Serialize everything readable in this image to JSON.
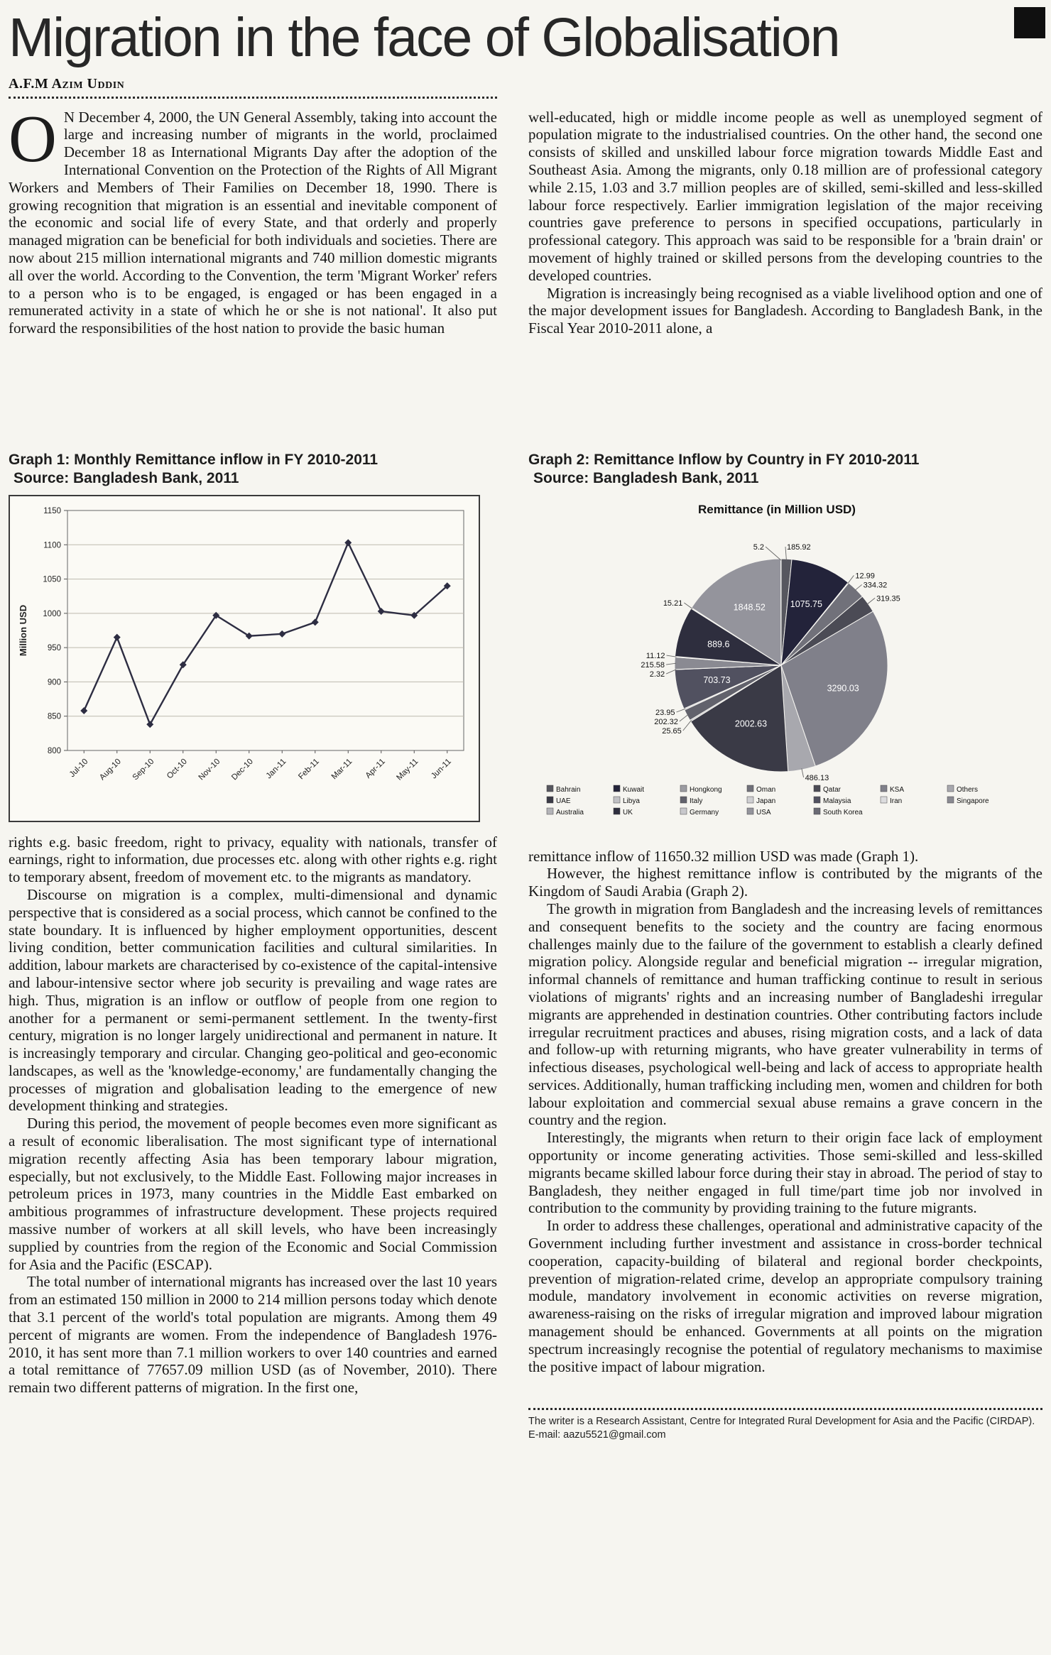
{
  "page": {
    "title": "Migration in the face of Globalisation",
    "byline": "A.F.M Azim Uddin"
  },
  "article": {
    "p1_dropcap": "O",
    "p1_rest": "N December 4, 2000, the UN General Assembly, taking into account the large and increasing number of migrants in the world, proclaimed December 18 as International Migrants Day after the adoption of the International Convention on the Protection of the Rights of All Migrant Workers and Members of Their Families on December 18, 1990. There is growing recognition that migration is an essential and inevitable component of the economic and social life of every State, and that orderly and properly managed migration can be beneficial for both individuals and societies. There are now about 215 million international migrants and 740 million domestic migrants all over the world. According to the Convention, the term 'Migrant Worker' refers to a person who is to be engaged, is engaged or has been engaged in a remunerated activity in a state of which he or she is not national'. It also put forward the responsibilities of the host nation to provide the basic human",
    "left_paras": [
      "rights e.g. basic freedom, right to privacy, equality with nationals, transfer of earnings, right to information, due processes etc. along with other rights e.g. right to temporary absent, freedom of movement etc. to the migrants as mandatory.",
      "Discourse on migration is a complex, multi-dimensional and dynamic perspective that is considered as a social process, which cannot be confined to the state boundary. It is influenced by higher employment opportunities, descent living condition, better communication facilities and cultural similarities. In addition, labour markets are characterised by co-existence of the capital-intensive and labour-intensive sector where job security is prevailing and wage rates are high. Thus, migration is an inflow or outflow of people from one region to another for a permanent or semi-permanent settlement. In the twenty-first century, migration is no longer largely unidirectional and permanent in nature. It is increasingly temporary and circular. Changing geo-political and geo-economic landscapes, as well as the 'knowledge-economy,' are fundamentally changing the processes of migration and globalisation leading to the emergence of new development thinking and strategies.",
      "During this period, the movement of people becomes even more significant as a result of economic liberalisation. The most significant type of international migration recently affecting Asia has been temporary labour migration, especially, but not exclusively, to the Middle East. Following major increases in petroleum prices in 1973, many countries in the Middle East embarked on ambitious programmes of infrastructure development. These projects required massive number of workers at all skill levels, who have been increasingly supplied by countries from the region of the Economic and Social Commission for Asia and the Pacific (ESCAP).",
      "The total number of international migrants has increased over the last 10 years from an estimated 150 million in 2000 to 214 million persons today which denote that 3.1 percent of the world's total population are migrants. Among them 49 percent of migrants are women. From the independence of Bangladesh 1976-2010, it has sent more than 7.1 million workers to over 140 countries and earned a total remittance of 77657.09 million USD (as of November, 2010). There remain two different patterns of migration. In the first one,"
    ],
    "right_top_paras": [
      "well-educated, high or middle income people as well as unemployed segment of population migrate to the industrialised countries. On the other hand, the second one consists of skilled and unskilled labour force migration towards Middle East and Southeast Asia. Among the migrants, only 0.18 million are of professional category while 2.15, 1.03 and 3.7 million peoples are of skilled, semi-skilled and less-skilled labour force respectively. Earlier immigration legislation of the major receiving countries gave preference to persons in specified occupations, particularly in professional category. This approach was said to be responsible for a 'brain drain' or movement of highly trained or skilled persons from the developing countries to the developed countries.",
      "Migration is increasingly being recognised as a viable livelihood option and one of the major development issues for Bangladesh. According to Bangladesh Bank, in the Fiscal Year 2010-2011 alone, a"
    ],
    "right_paras": [
      "remittance inflow of 11650.32 million USD was made (Graph 1).",
      "However, the highest remittance inflow is contributed by the migrants of the Kingdom of Saudi Arabia (Graph 2).",
      "The growth in migration from Bangladesh and the increasing levels of remittances and consequent benefits to the society and the country are facing enormous challenges mainly due to the failure of the government to establish a clearly defined migration policy. Alongside regular and beneficial migration -- irregular migration, informal channels of remittance and human trafficking continue to result in serious violations of migrants' rights and an increasing number of Bangladeshi irregular migrants are apprehended in destination countries. Other contributing factors include irregular recruitment practices and abuses, rising migration costs, and a lack of data and follow-up with returning migrants, who have greater vulnerability in terms of infectious diseases, psychological well-being and lack of access to appropriate health services. Additionally, human trafficking including men, women and children for both labour exploitation and commercial sexual abuse remains a grave concern in the country and the region.",
      "Interestingly, the migrants when return to their origin face lack of employment opportunity or income generating activities. Those semi-skilled and less-skilled migrants became skilled labour force during their stay in abroad. The period of stay to Bangladesh, they neither engaged in full time/part time job nor involved in contribution to the community by providing training to the future migrants.",
      "In order to address these challenges, operational and administrative capacity of the Government including further investment and assistance in cross-border technical cooperation, capacity-building of bilateral and regional border checkpoints, prevention of migration-related crime, develop an appropriate compulsory training module, mandatory involvement in economic activities on reverse migration, awareness-raising on the risks of irregular migration and improved labour migration management should be enhanced. Governments at all points on the migration spectrum increasingly recognise the potential of regulatory mechanisms to maximise the positive impact of labour migration."
    ]
  },
  "graph1": {
    "caption1": "Graph 1: Monthly Remittance inflow in FY 2010-2011",
    "caption2": "Source: Bangladesh Bank, 2011"
  },
  "graph2": {
    "caption1": "Graph 2: Remittance Inflow by Country in FY 2010-2011",
    "caption2": "Source: Bangladesh Bank, 2011"
  },
  "chart_data": [
    {
      "type": "line",
      "title": "",
      "xlabel": "",
      "ylabel": "Million USD",
      "ylim": [
        800,
        1150
      ],
      "ytick_step": 50,
      "grid": true,
      "line_color": "#2d2d42",
      "categories": [
        "Jul-10",
        "Aug-10",
        "Sep-10",
        "Oct-10",
        "Nov-10",
        "Dec-10",
        "Jan-11",
        "Feb-11",
        "Mar-11",
        "Apr-11",
        "May-11",
        "Jun-11"
      ],
      "values": [
        858,
        965,
        838,
        925,
        997,
        967,
        970,
        987,
        1103,
        1003,
        997,
        1040
      ]
    },
    {
      "type": "pie",
      "title": "Remittance (in Million USD)",
      "legend_position": "bottom",
      "labels": [
        "Bahrain",
        "Kuwait",
        "Hongkong",
        "Oman",
        "Qatar",
        "KSA",
        "Others",
        "UAE",
        "Libya",
        "Italy",
        "Japan",
        "Malaysia",
        "Iran",
        "Singapore",
        "Australia",
        "UK",
        "Germany",
        "USA",
        "South Korea"
      ],
      "values": [
        185.92,
        1075.75,
        12.99,
        334.32,
        319.35,
        3290.03,
        486.13,
        2002.63,
        25.65,
        202.32,
        23.95,
        703.73,
        2.32,
        215.58,
        11.12,
        889.6,
        15.21,
        1848.52,
        5.2
      ],
      "value_labels": [
        "185.92",
        "1075.75",
        "12.99",
        "334.32",
        "319.35",
        "3290.03",
        "486.13",
        "2002.63",
        "25.65",
        "202.32",
        "23.95",
        "703.73",
        "2.32",
        "215.58",
        "11.12",
        "889.6",
        "15.21",
        "1848.52",
        "5.2"
      ],
      "colors": [
        "#57575f",
        "#23233a",
        "#9c9ca2",
        "#71717a",
        "#4b4b55",
        "#80808a",
        "#a8a8ae",
        "#3a3a46",
        "#c0c0c4",
        "#62626c",
        "#cfcfd2",
        "#515160",
        "#dcdcde",
        "#8a8a92",
        "#b4b4b8",
        "#2e2e3e",
        "#c8c8cc",
        "#94949c",
        "#6a6a74"
      ],
      "legend_columns": [
        [
          "Bahrain",
          "UAE",
          "Australia"
        ],
        [
          "Kuwait",
          "Libya",
          "UK"
        ],
        [
          "Hongkong",
          "Italy",
          "Germany"
        ],
        [
          "Oman",
          "Japan",
          "USA"
        ],
        [
          "Qatar",
          "Malaysia",
          "South Korea"
        ],
        [
          "KSA",
          "Iran"
        ],
        [
          "Others",
          "Singapore"
        ]
      ]
    }
  ],
  "footer": {
    "line1": "The writer is a Research Assistant, Centre for Integrated Rural Development for Asia and the Pacific (CIRDAP).",
    "line2": "E-mail: aazu5521@gmail.com"
  }
}
